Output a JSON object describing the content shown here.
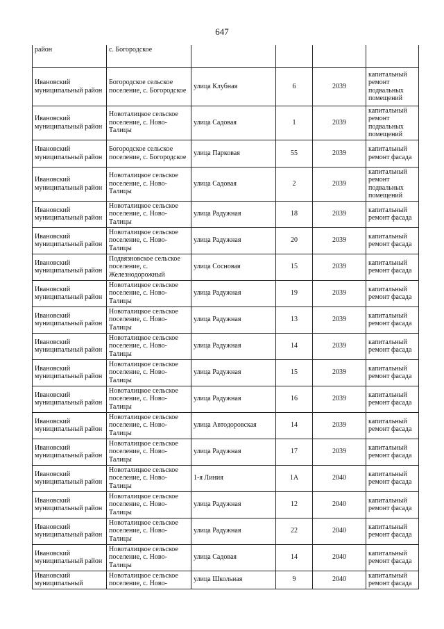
{
  "page_number": "647",
  "rows": [
    {
      "district": "район",
      "settlement": "с. Богородское",
      "street": "",
      "house": "",
      "year": "",
      "work": ""
    },
    {
      "district": "Ивановский муниципальный район",
      "settlement": "Богородское сельское поселение, с. Богородское",
      "street": "улица Клубная",
      "house": "6",
      "year": "2039",
      "work": "капитальный ремонт подвальных помещений"
    },
    {
      "district": "Ивановский муниципальный район",
      "settlement": "Новоталицкое сельское поселение, с. Ново-Талицы",
      "street": "улица Садовая",
      "house": "1",
      "year": "2039",
      "work": "капитальный ремонт подвальных помещений"
    },
    {
      "district": "Ивановский муниципальный район",
      "settlement": "Богородское сельское поселение, с. Богородское",
      "street": "улица Парковая",
      "house": "55",
      "year": "2039",
      "work": "капитальный ремонт фасада"
    },
    {
      "district": "Ивановский муниципальный район",
      "settlement": "Новоталицкое сельское поселение, с. Ново-Талицы",
      "street": "улица Садовая",
      "house": "2",
      "year": "2039",
      "work": "капитальный ремонт подвальных помещений"
    },
    {
      "district": "Ивановский муниципальный район",
      "settlement": "Новоталицкое сельское поселение, с. Ново-Талицы",
      "street": "улица Радужная",
      "house": "18",
      "year": "2039",
      "work": "капитальный ремонт фасада"
    },
    {
      "district": "Ивановский муниципальный район",
      "settlement": "Новоталицкое сельское поселение, с. Ново-Талицы",
      "street": "улица Радужная",
      "house": "20",
      "year": "2039",
      "work": "капитальный ремонт фасада"
    },
    {
      "district": "Ивановский муниципальный район",
      "settlement": "Подвязновское сельское поселение, с. Железнодорожный",
      "street": "улица Сосновая",
      "house": "15",
      "year": "2039",
      "work": "капитальный ремонт фасада"
    },
    {
      "district": "Ивановский муниципальный район",
      "settlement": "Новоталицкое сельское поселение, с. Ново-Талицы",
      "street": "улица Радужная",
      "house": "19",
      "year": "2039",
      "work": "капитальный ремонт фасада"
    },
    {
      "district": "Ивановский муниципальный район",
      "settlement": "Новоталицкое сельское поселение, с. Ново-Талицы",
      "street": "улица Радужная",
      "house": "13",
      "year": "2039",
      "work": "капитальный ремонт фасада"
    },
    {
      "district": "Ивановский муниципальный район",
      "settlement": "Новоталицкое сельское поселение, с. Ново-Талицы",
      "street": "улица Радужная",
      "house": "14",
      "year": "2039",
      "work": "капитальный ремонт фасада"
    },
    {
      "district": "Ивановский муниципальный район",
      "settlement": "Новоталицкое сельское поселение, с. Ново-Талицы",
      "street": "улица Радужная",
      "house": "15",
      "year": "2039",
      "work": "капитальный ремонт фасада"
    },
    {
      "district": "Ивановский муниципальный район",
      "settlement": "Новоталицкое сельское поселение, с. Ново-Талицы",
      "street": "улица Радужная",
      "house": "16",
      "year": "2039",
      "work": "капитальный ремонт фасада"
    },
    {
      "district": "Ивановский муниципальный район",
      "settlement": "Новоталицкое сельское поселение, с. Ново-Талицы",
      "street": "улица Автодоровская",
      "house": "14",
      "year": "2039",
      "work": "капитальный ремонт фасада"
    },
    {
      "district": "Ивановский муниципальный район",
      "settlement": "Новоталицкое сельское поселение, с. Ново-Талицы",
      "street": "улица Радужная",
      "house": "17",
      "year": "2039",
      "work": "капитальный ремонт фасада"
    },
    {
      "district": "Ивановский муниципальный район",
      "settlement": "Новоталицкое сельское поселение, с. Ново-Талицы",
      "street": "1-я Линия",
      "house": "1А",
      "year": "2040",
      "work": "капитальный ремонт фасада"
    },
    {
      "district": "Ивановский муниципальный район",
      "settlement": "Новоталицкое сельское поселение, с. Ново-Талицы",
      "street": "улица Радужная",
      "house": "12",
      "year": "2040",
      "work": "капитальный ремонт фасада"
    },
    {
      "district": "Ивановский муниципальный район",
      "settlement": "Новоталицкое сельское поселение, с. Ново-Талицы",
      "street": "улица Радужная",
      "house": "22",
      "year": "2040",
      "work": "капитальный ремонт фасада"
    },
    {
      "district": "Ивановский муниципальный район",
      "settlement": "Новоталицкое сельское поселение, с. Ново-Талицы",
      "street": "улица Садовая",
      "house": "14",
      "year": "2040",
      "work": "капитальный ремонт фасада"
    },
    {
      "district": "Ивановский муниципальный",
      "settlement": "Новоталицкое сельское поселение, с. Ново-",
      "street": "улица Школьная",
      "house": "9",
      "year": "2040",
      "work": "капитальный ремонт фасада"
    }
  ]
}
